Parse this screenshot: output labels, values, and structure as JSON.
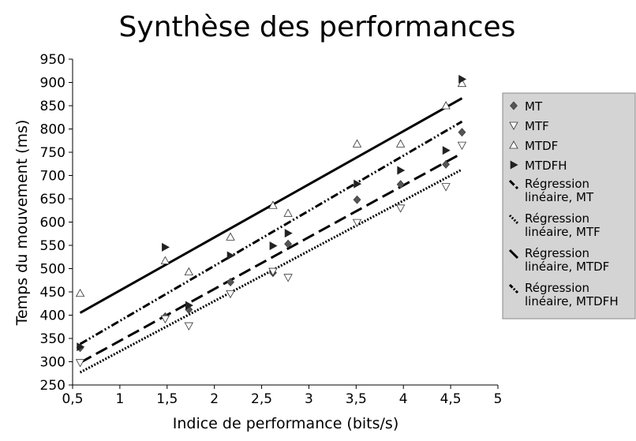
{
  "chart_data": {
    "type": "scatter",
    "title": "Synthèse des performances",
    "xlabel": "Indice de performance (bits/s)",
    "ylabel": "Temps du mouvement (ms)",
    "xlim": [
      0.5,
      5
    ],
    "ylim": [
      250,
      950
    ],
    "x_ticks": [
      "0,5",
      "1",
      "1,5",
      "2",
      "2,5",
      "3",
      "3,5",
      "4",
      "4,5",
      "5"
    ],
    "y_ticks": [
      "250",
      "300",
      "350",
      "400",
      "450",
      "500",
      "550",
      "600",
      "650",
      "700",
      "750",
      "800",
      "850",
      "900",
      "950"
    ],
    "grid": false,
    "legend_position": "right",
    "series": [
      {
        "name": "MT",
        "kind": "points",
        "marker": "diamond",
        "points": [
          [
            0.58,
            330
          ],
          [
            1.48,
            397
          ],
          [
            1.73,
            412
          ],
          [
            2.17,
            471
          ],
          [
            2.62,
            491
          ],
          [
            2.78,
            553
          ],
          [
            3.51,
            648
          ],
          [
            3.97,
            681
          ],
          [
            4.45,
            724
          ],
          [
            4.62,
            793
          ]
        ]
      },
      {
        "name": "MTF",
        "kind": "points",
        "marker": "triangle-down",
        "points": [
          [
            0.58,
            298
          ],
          [
            1.48,
            392
          ],
          [
            1.73,
            377
          ],
          [
            2.17,
            446
          ],
          [
            2.62,
            494
          ],
          [
            2.78,
            481
          ],
          [
            3.51,
            599
          ],
          [
            3.97,
            630
          ],
          [
            4.45,
            676
          ],
          [
            4.62,
            765
          ]
        ]
      },
      {
        "name": "MTDF",
        "kind": "points",
        "marker": "triangle-up",
        "points": [
          [
            0.58,
            447
          ],
          [
            1.48,
            517
          ],
          [
            1.73,
            493
          ],
          [
            2.17,
            568
          ],
          [
            2.62,
            636
          ],
          [
            2.78,
            619
          ],
          [
            3.51,
            768
          ],
          [
            3.97,
            768
          ],
          [
            4.45,
            850
          ],
          [
            4.62,
            898
          ]
        ]
      },
      {
        "name": "MTDFH",
        "kind": "points",
        "marker": "triangle-right",
        "points": [
          [
            0.58,
            332
          ],
          [
            1.48,
            546
          ],
          [
            1.73,
            421
          ],
          [
            2.17,
            528
          ],
          [
            2.62,
            549
          ],
          [
            2.78,
            576
          ],
          [
            3.51,
            682
          ],
          [
            3.97,
            711
          ],
          [
            4.45,
            754
          ],
          [
            4.62,
            907
          ]
        ]
      },
      {
        "name": "Régression linéaire, MT",
        "kind": "line",
        "dash": "long-dash",
        "points": [
          [
            0.58,
            298
          ],
          [
            4.62,
            748
          ]
        ]
      },
      {
        "name": "Régression linéaire, MTF",
        "kind": "line",
        "dash": "dotted",
        "points": [
          [
            0.58,
            277
          ],
          [
            4.62,
            713
          ]
        ]
      },
      {
        "name": "Régression linéaire, MTDF",
        "kind": "line",
        "dash": "solid",
        "points": [
          [
            0.58,
            405
          ],
          [
            4.62,
            866
          ]
        ]
      },
      {
        "name": "Régression linéaire, MTDFH",
        "kind": "line",
        "dash": "dash-dot-dot",
        "points": [
          [
            0.58,
            338
          ],
          [
            4.62,
            816
          ]
        ]
      }
    ],
    "colors": {
      "marker_fill": "#555555",
      "hollow_marker_fill": "#ffffff",
      "line": "#000000",
      "legend_bg": "#d4d4d4"
    }
  }
}
